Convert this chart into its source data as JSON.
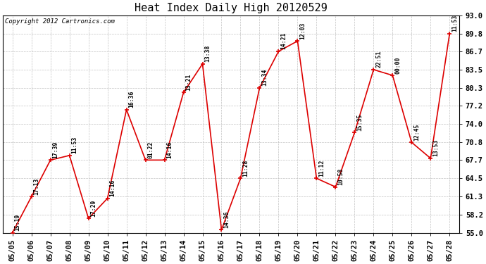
{
  "title": "Heat Index Daily High 20120529",
  "copyright": "Copyright 2012 Cartronics.com",
  "dates": [
    "05/05",
    "05/06",
    "05/07",
    "05/08",
    "05/09",
    "05/10",
    "05/11",
    "05/12",
    "05/13",
    "05/14",
    "05/15",
    "05/16",
    "05/17",
    "05/18",
    "05/19",
    "05/20",
    "05/21",
    "05/22",
    "05/23",
    "05/24",
    "05/25",
    "05/26",
    "05/27",
    "05/28"
  ],
  "values": [
    55.0,
    61.3,
    67.7,
    68.5,
    57.5,
    61.0,
    76.5,
    67.7,
    67.7,
    79.5,
    84.5,
    55.5,
    64.5,
    80.3,
    86.7,
    88.5,
    64.5,
    63.0,
    72.5,
    83.5,
    82.5,
    70.8,
    68.0,
    89.8
  ],
  "time_labels": [
    "15:19",
    "17:13",
    "17:39",
    "11:53",
    "17:29",
    "14:16",
    "16:36",
    "01:22",
    "14:16",
    "13:21",
    "13:38",
    "14:36",
    "11:28",
    "13:34",
    "14:21",
    "12:03",
    "11:12",
    "10:58",
    "15:35",
    "22:51",
    "00:00",
    "12:45",
    "13:53",
    "11:53"
  ],
  "line_color": "#dd0000",
  "marker_color": "#dd0000",
  "background_color": "#ffffff",
  "plot_bg_color": "#ffffff",
  "grid_color": "#bbbbbb",
  "ylim": [
    55.0,
    93.0
  ],
  "yticks": [
    55.0,
    58.2,
    61.3,
    64.5,
    67.7,
    70.8,
    74.0,
    77.2,
    80.3,
    83.5,
    86.7,
    89.8,
    93.0
  ],
  "title_fontsize": 11,
  "copyright_fontsize": 6.5,
  "label_fontsize": 5.8,
  "tick_fontsize": 7.5,
  "figsize": [
    6.9,
    3.75
  ],
  "dpi": 100
}
